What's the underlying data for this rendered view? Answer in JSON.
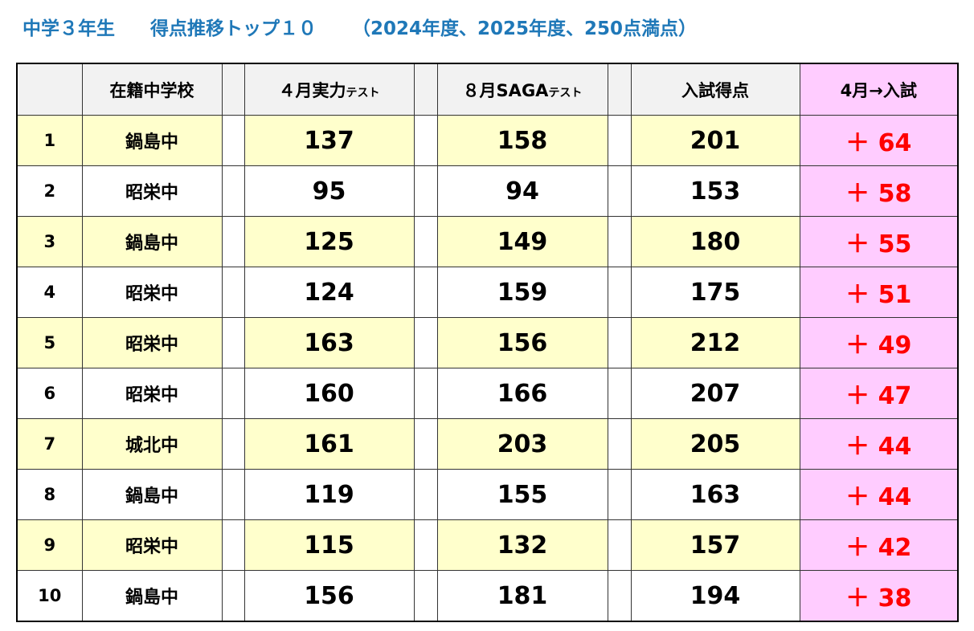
{
  "header": {
    "title": "中学３年生",
    "subtitle": "得点推移トップ１０",
    "note": "（2024年度、2025年度、250点満点）"
  },
  "table": {
    "columns": [
      {
        "main": "在籍中学校"
      },
      {
        "main": "４月実力",
        "small": "テスト"
      },
      {
        "main": "８月SAGA",
        "small": "テスト"
      },
      {
        "main": "入試得点"
      },
      {
        "main": "4月→入試"
      }
    ],
    "rows": [
      [
        1,
        "鍋島中",
        137,
        158,
        201,
        "＋ 64"
      ],
      [
        2,
        "昭栄中",
        95,
        94,
        153,
        "＋ 58"
      ],
      [
        3,
        "鍋島中",
        125,
        149,
        180,
        "＋ 55"
      ],
      [
        4,
        "昭栄中",
        124,
        159,
        175,
        "＋ 51"
      ],
      [
        5,
        "昭栄中",
        163,
        156,
        212,
        "＋ 49"
      ],
      [
        6,
        "昭栄中",
        160,
        166,
        207,
        "＋ 47"
      ],
      [
        7,
        "城北中",
        161,
        203,
        205,
        "＋ 44"
      ],
      [
        8,
        "鍋島中",
        119,
        155,
        163,
        "＋ 44"
      ],
      [
        9,
        "昭栄中",
        115,
        132,
        157,
        "＋ 42"
      ],
      [
        10,
        "鍋島中",
        156,
        181,
        194,
        "＋ 38"
      ]
    ]
  }
}
